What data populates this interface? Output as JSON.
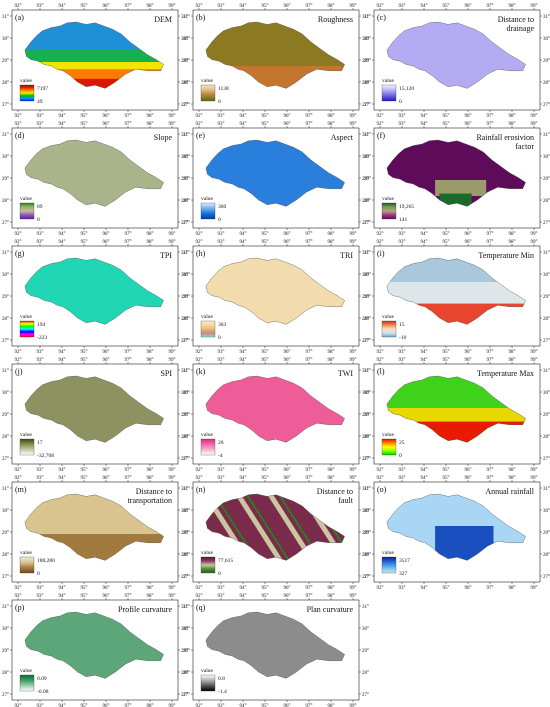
{
  "figure": {
    "x_ticks": [
      "92°",
      "93°",
      "94°",
      "95°",
      "96°",
      "97°",
      "98°",
      "99°"
    ],
    "y_ticks": [
      "27°",
      "28°",
      "29°",
      "30°",
      "31°"
    ],
    "legend_label": "value"
  },
  "panels": [
    {
      "id": "a",
      "label": "(a)",
      "title": [
        "DEM"
      ],
      "max": "7197",
      "min": "49",
      "scheme": "dem",
      "ramp": [
        "#7a1400",
        "#f01d00",
        "#ff8c00",
        "#ffe600",
        "#00c000",
        "#0098ff",
        "#0020ff"
      ]
    },
    {
      "id": "b",
      "label": "(b)",
      "title": [
        "Roughness"
      ],
      "max": "1138",
      "min": "0",
      "scheme": "roughness",
      "ramp": [
        "#f4e1d3",
        "#e8c38f",
        "#ca9550",
        "#8d7e2a",
        "#5a6a1c"
      ]
    },
    {
      "id": "c",
      "label": "(c)",
      "title": [
        "Distance to",
        "drainage"
      ],
      "max": "15,120",
      "min": "0",
      "scheme": "drainage",
      "ramp": [
        "#f3f1ff",
        "#b7b0f2",
        "#6b63e0",
        "#2613c8"
      ]
    },
    {
      "id": "d",
      "label": "(d)",
      "title": [
        "Slope"
      ],
      "max": "89",
      "min": "0",
      "scheme": "slope",
      "ramp": [
        "#2d7a16",
        "#8fb96a",
        "#c9b9a3",
        "#8a5cb3",
        "#5a1f9a"
      ]
    },
    {
      "id": "e",
      "label": "(e)",
      "title": [
        "Aspect"
      ],
      "max": "360",
      "min": "0",
      "scheme": "aspect",
      "ramp": [
        "#dfefff",
        "#6fb0f0",
        "#1a6fd6",
        "#003ca0"
      ]
    },
    {
      "id": "f",
      "label": "(f)",
      "title": [
        "Rainfall erosivion",
        "factor"
      ],
      "max": "19,265",
      "min": "141",
      "scheme": "rainfall_erosivity",
      "ramp": [
        "#0c5f2a",
        "#7a9b55",
        "#b7a27a",
        "#9a3a7e",
        "#5e0b5a"
      ]
    },
    {
      "id": "g",
      "label": "(g)",
      "title": [
        "TPI"
      ],
      "max": "194",
      "min": "-223",
      "scheme": "tpi",
      "ramp": [
        "#ff0000",
        "#ffff00",
        "#00ff00",
        "#00ffff",
        "#0000ff",
        "#ff00ff",
        "#ff0000"
      ]
    },
    {
      "id": "h",
      "label": "(h)",
      "title": [
        "TRI"
      ],
      "max": "363",
      "min": "0",
      "scheme": "tri",
      "ramp": [
        "#f7ecd0",
        "#f3d9a6",
        "#e9b77f",
        "#cc8a6a",
        "#8fd5f0"
      ]
    },
    {
      "id": "i",
      "label": "(i)",
      "title": [
        "Temperature Min"
      ],
      "max": "15",
      "min": "-10",
      "scheme": "temp_min",
      "ramp": [
        "#d7262a",
        "#f08a4b",
        "#f6e1c3",
        "#cfe3ef",
        "#6fa6cf"
      ]
    },
    {
      "id": "j",
      "label": "(j)",
      "title": [
        "SPI"
      ],
      "max": "17",
      "min": "-32,768",
      "scheme": "spi",
      "ramp": [
        "#3b4a10",
        "#8a8e4e",
        "#c8c6a6",
        "#ffffff"
      ]
    },
    {
      "id": "k",
      "label": "(k)",
      "title": [
        "TWI"
      ],
      "max": "20",
      "min": "-4",
      "scheme": "twi",
      "ramp": [
        "#e8237b",
        "#ef6aa4",
        "#f7b3d0",
        "#ffffff"
      ]
    },
    {
      "id": "l",
      "label": "(l)",
      "title": [
        "Temperature Max"
      ],
      "max": "25",
      "min": "0",
      "scheme": "temp_max",
      "ramp": [
        "#ff0000",
        "#ff8800",
        "#ffff00",
        "#88ff00",
        "#00cc00"
      ]
    },
    {
      "id": "m",
      "label": "(m)",
      "title": [
        "Distance to",
        "transportation"
      ],
      "max": "188,280",
      "min": "0",
      "scheme": "transport",
      "ramp": [
        "#f2eed6",
        "#d9c48f",
        "#a57c3f",
        "#6b4a1d"
      ]
    },
    {
      "id": "n",
      "label": "(n)",
      "title": [
        "Distance to",
        "fault"
      ],
      "max": "77,615",
      "min": "0",
      "scheme": "fault",
      "ramp": [
        "#5e0b3a",
        "#8a3f60",
        "#c9c6a0",
        "#4f8a3a",
        "#1a6a10"
      ]
    },
    {
      "id": "o",
      "label": "(o)",
      "title": [
        "Annual rainfall"
      ],
      "max": "3517",
      "min": "327",
      "scheme": "annual_rainfall",
      "ramp": [
        "#0b1fa0",
        "#2a6fd8",
        "#6bb8ee",
        "#cbe8fa"
      ]
    },
    {
      "id": "p",
      "label": "(p)",
      "title": [
        "Profile curvature"
      ],
      "max": "0.09",
      "min": "-0.08",
      "scheme": "profile_curv",
      "ramp": [
        "#0d6a3a",
        "#3f9a66",
        "#9ccfae",
        "#ffffff"
      ]
    },
    {
      "id": "q",
      "label": "(q)",
      "title": [
        "Plan curvature"
      ],
      "max": "0.8",
      "min": "-1.4",
      "scheme": "plan_curv",
      "ramp": [
        "#ffffff",
        "#b0b0b0",
        "#555555",
        "#000000"
      ]
    }
  ]
}
